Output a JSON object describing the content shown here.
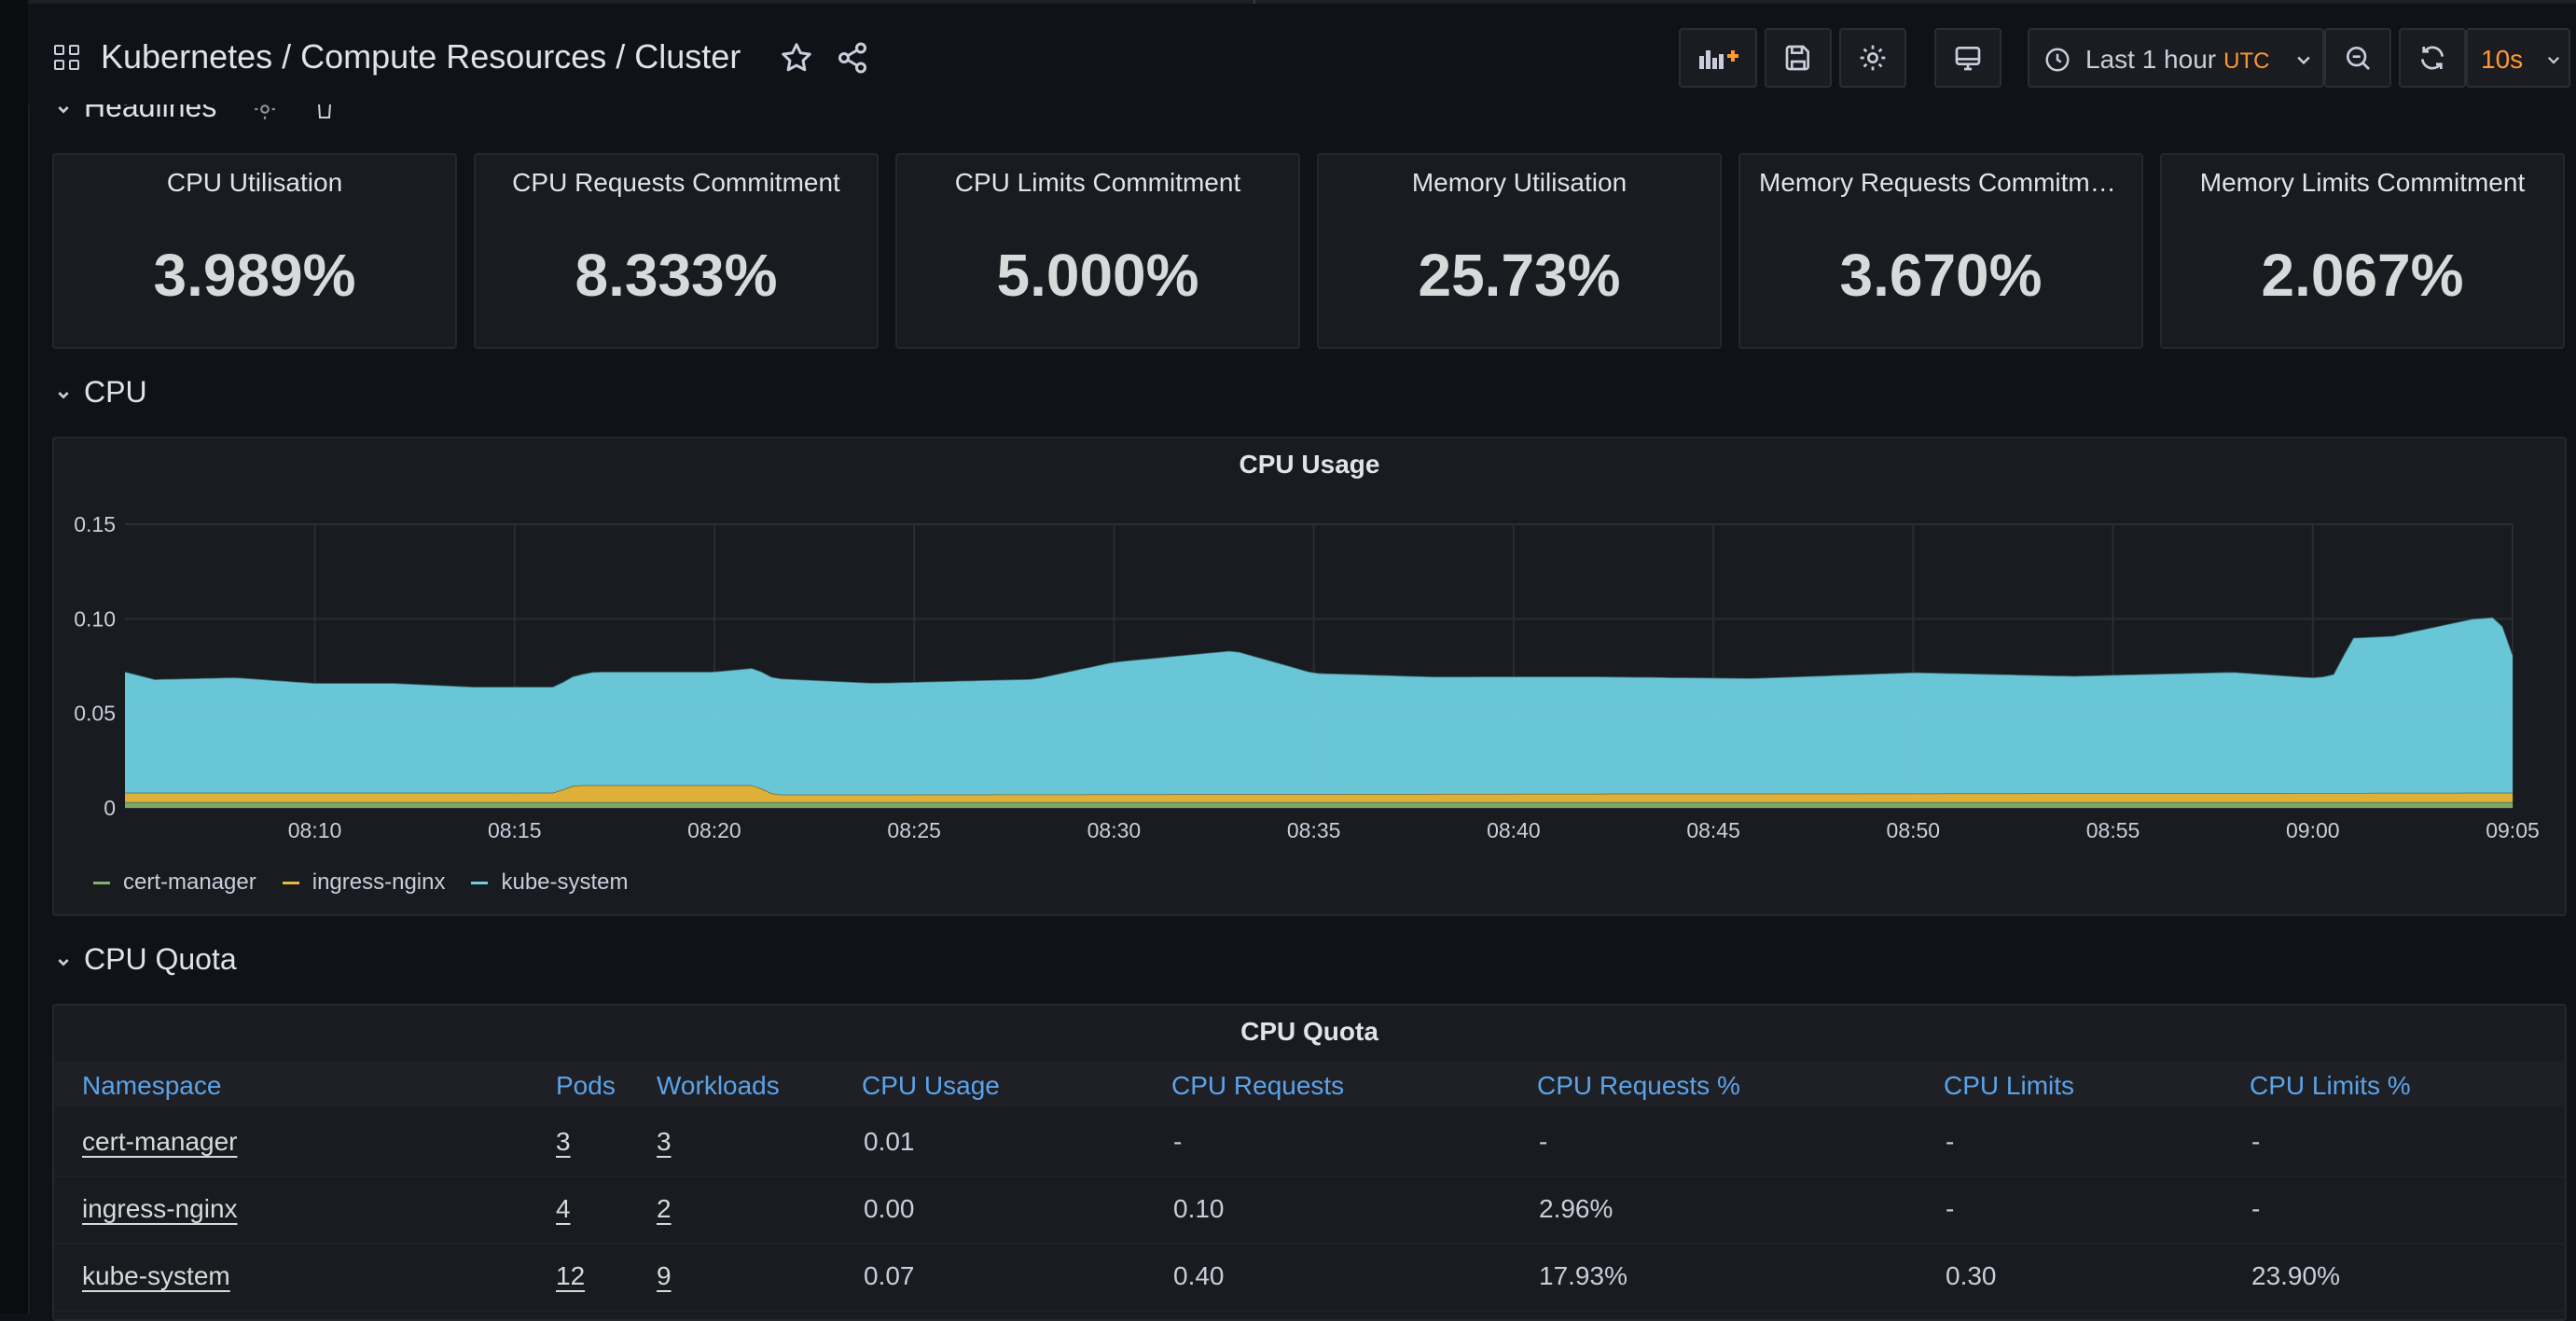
{
  "header": {
    "title": "Kubernetes / Compute Resources / Cluster",
    "time_range": "Last 1 hour",
    "timezone": "UTC",
    "refresh": "10s"
  },
  "rows": {
    "headlines": "Headlines",
    "cpu": "CPU",
    "cpu_quota": "CPU Quota"
  },
  "stats": [
    {
      "title": "CPU Utilisation",
      "value": "3.989%"
    },
    {
      "title": "CPU Requests Commitment",
      "value": "8.333%"
    },
    {
      "title": "CPU Limits Commitment",
      "value": "5.000%"
    },
    {
      "title": "Memory Utilisation",
      "value": "25.73%"
    },
    {
      "title": "Memory Requests Commitment",
      "value": "3.670%"
    },
    {
      "title": "Memory Limits Commitment",
      "value": "2.067%"
    }
  ],
  "colors": {
    "cert_manager": "#7eb26d",
    "ingress_nginx": "#eab839",
    "kube_system": "#6ed0e0",
    "link_blue": "#5ba3e9",
    "refresh_orange": "#ff9830"
  },
  "chart_data": {
    "type": "area",
    "stacked": true,
    "title": "CPU Usage",
    "ylim": [
      0,
      0.15
    ],
    "y_ticks": [
      "0",
      "0.05",
      "0.10",
      "0.15"
    ],
    "x_ticks": [
      "08:10",
      "08:15",
      "08:20",
      "08:25",
      "08:30",
      "08:35",
      "08:40",
      "08:45",
      "08:50",
      "08:55",
      "09:00",
      "09:05"
    ],
    "x_range": [
      "08:05:15",
      "09:05:00"
    ],
    "grid": true,
    "legend": "bottom-left",
    "series": [
      {
        "name": "cert-manager",
        "color": "#7eb26d",
        "x": [
          "08:05:15",
          "08:10",
          "08:15",
          "08:20",
          "08:25",
          "08:30",
          "08:35",
          "08:40",
          "08:45",
          "08:50",
          "08:55",
          "09:00",
          "09:05"
        ],
        "values": [
          0.003,
          0.003,
          0.003,
          0.003,
          0.003,
          0.003,
          0.003,
          0.003,
          0.003,
          0.003,
          0.003,
          0.003,
          0.003
        ]
      },
      {
        "name": "ingress-nginx",
        "color": "#eab839",
        "x": [
          "08:05:15",
          "08:12",
          "08:16",
          "08:16:30",
          "08:21",
          "08:21:30",
          "09:05"
        ],
        "values": [
          0.005,
          0.005,
          0.005,
          0.009,
          0.009,
          0.004,
          0.005
        ]
      },
      {
        "name": "kube-system",
        "color": "#6ed0e0",
        "x": [
          "08:05:15",
          "08:06",
          "08:08",
          "08:10",
          "08:12",
          "08:14",
          "08:16",
          "08:17",
          "08:20",
          "08:21",
          "08:24",
          "08:28",
          "08:30",
          "08:33",
          "08:35",
          "08:38",
          "08:42",
          "08:46",
          "08:50",
          "08:54",
          "08:58",
          "09:00",
          "09:00:30",
          "09:01",
          "09:02",
          "09:04",
          "09:04:40",
          "09:05"
        ],
        "values": [
          0.064,
          0.06,
          0.061,
          0.058,
          0.058,
          0.056,
          0.056,
          0.06,
          0.06,
          0.062,
          0.059,
          0.061,
          0.07,
          0.076,
          0.064,
          0.062,
          0.062,
          0.061,
          0.064,
          0.062,
          0.064,
          0.061,
          0.062,
          0.082,
          0.083,
          0.092,
          0.093,
          0.073
        ]
      }
    ]
  },
  "quota": {
    "title": "CPU Quota",
    "columns": [
      "Namespace",
      "Pods",
      "Workloads",
      "CPU Usage",
      "CPU Requests",
      "CPU Requests %",
      "CPU Limits",
      "CPU Limits %"
    ],
    "rows": [
      [
        "cert-manager",
        "3",
        "3",
        "0.01",
        "-",
        "-",
        "-",
        "-"
      ],
      [
        "ingress-nginx",
        "4",
        "2",
        "0.00",
        "0.10",
        "2.96%",
        "-",
        "-"
      ],
      [
        "kube-system",
        "12",
        "9",
        "0.07",
        "0.40",
        "17.93%",
        "0.30",
        "23.90%"
      ]
    ]
  }
}
